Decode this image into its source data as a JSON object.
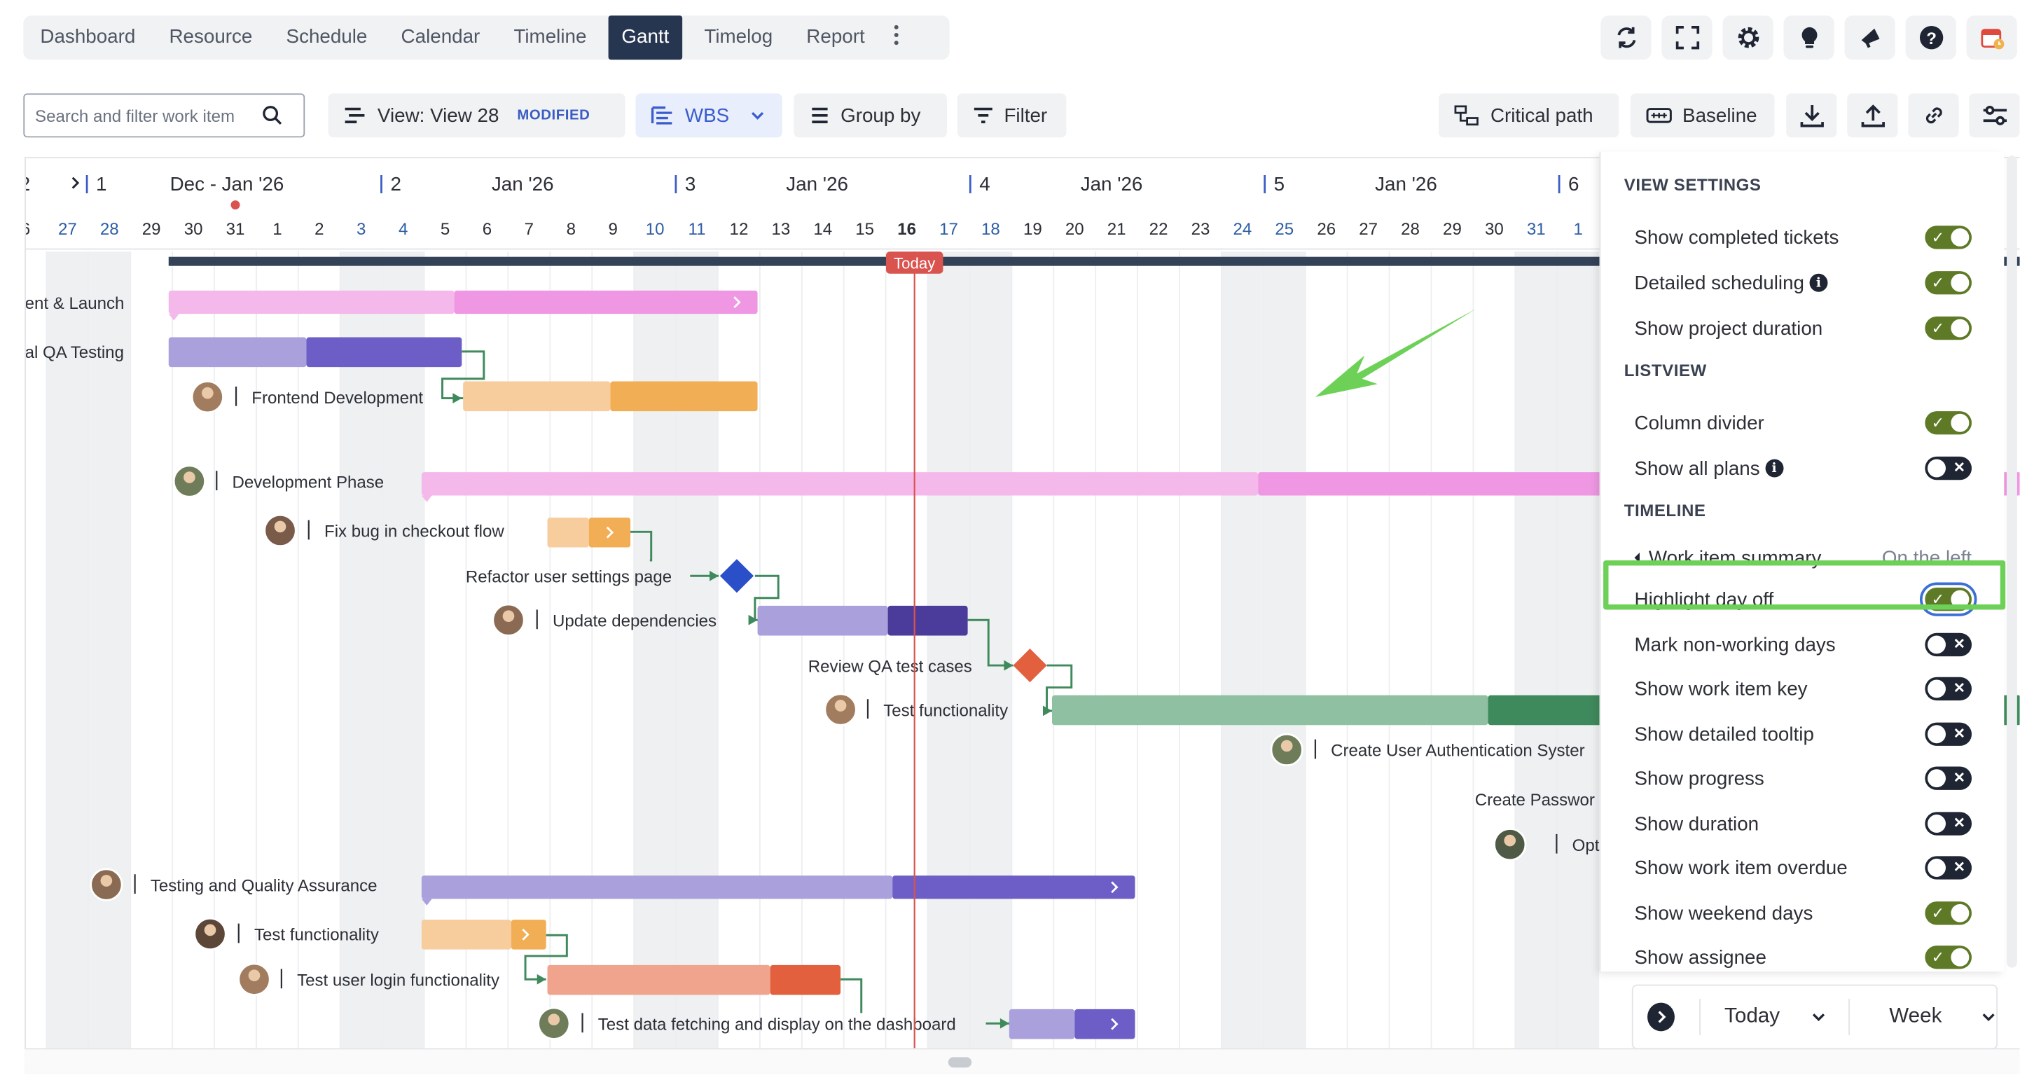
{
  "nav": {
    "tabs": [
      {
        "label": "Dashboard"
      },
      {
        "label": "Resource"
      },
      {
        "label": "Schedule"
      },
      {
        "label": "Calendar"
      },
      {
        "label": "Timeline"
      },
      {
        "label": "Gantt",
        "active": true
      },
      {
        "label": "Timelog"
      },
      {
        "label": "Report"
      }
    ],
    "more_icon": "vertical-ellipsis-icon",
    "right_icons": [
      "refresh-icon",
      "fullscreen-icon",
      "gear-icon",
      "lightbulb-icon",
      "megaphone-icon",
      "help-icon",
      "calendar-app-icon"
    ]
  },
  "toolbar": {
    "search_placeholder": "Search and filter work item",
    "view_label": "View: View 28",
    "view_badge": "MODIFIED",
    "wbs_label": "WBS",
    "group_label": "Group by",
    "filter_label": "Filter",
    "critical_label": "Critical path",
    "baseline_label": "Baseline",
    "right_icons": [
      "download-icon",
      "upload-icon",
      "link-icon",
      "sliders-icon"
    ]
  },
  "timeline": {
    "weeks": [
      {
        "num": "2",
        "label": ""
      },
      {
        "num": "1",
        "label": "Dec - Jan '26"
      },
      {
        "num": "2",
        "label": "Jan '26"
      },
      {
        "num": "3",
        "label": "Jan '26"
      },
      {
        "num": "4",
        "label": "Jan '26"
      },
      {
        "num": "5",
        "label": "Jan '26"
      },
      {
        "num": "6",
        "label": ""
      }
    ],
    "days": [
      "6",
      "27",
      "28",
      "29",
      "30",
      "31",
      "1",
      "2",
      "3",
      "4",
      "5",
      "6",
      "7",
      "8",
      "9",
      "10",
      "11",
      "12",
      "13",
      "14",
      "15",
      "16",
      "17",
      "18",
      "19",
      "20",
      "21",
      "22",
      "23",
      "24",
      "25",
      "26",
      "27",
      "28",
      "29",
      "30",
      "31",
      "1"
    ],
    "weekend_day_indices": [
      1,
      2,
      8,
      9,
      15,
      16,
      22,
      23,
      29,
      30,
      36,
      37
    ],
    "today_index": 21,
    "today_label": "Today",
    "colors": {
      "weekend_text": "#2e5ea6",
      "today_line": "#d9534f",
      "summary_bar": "#344258",
      "weekend_shade": "#eef0f2"
    }
  },
  "tasks": [
    {
      "label": "nent & Launch",
      "avatar": false
    },
    {
      "label": "nal QA Testing",
      "avatar": false
    },
    {
      "label": "Frontend Development",
      "avatar": true
    },
    {
      "label": "Development Phase",
      "avatar": true
    },
    {
      "label": "Fix bug in checkout flow",
      "avatar": true
    },
    {
      "label": "Refactor user settings page",
      "avatar": false
    },
    {
      "label": "Update dependencies",
      "avatar": true
    },
    {
      "label": "Review QA test cases",
      "avatar": false
    },
    {
      "label": "Test functionality",
      "avatar": true
    },
    {
      "label": "Create User Authentication Syster",
      "avatar": true
    },
    {
      "label": "Create Passwor",
      "avatar": false
    },
    {
      "label": "Optim",
      "avatar": true
    },
    {
      "label": "Testing and Quality Assurance",
      "avatar": true
    },
    {
      "label": "Test functionality",
      "avatar": true
    },
    {
      "label": "Test user login functionality",
      "avatar": true
    },
    {
      "label": "Test data fetching and display on the dashboard",
      "avatar": true
    }
  ],
  "settings": {
    "sections": [
      {
        "title": "VIEW SETTINGS",
        "items": [
          {
            "label": "Show completed tickets",
            "on": true
          },
          {
            "label": "Detailed scheduling",
            "on": true,
            "info": true
          },
          {
            "label": "Show project duration",
            "on": true
          }
        ]
      },
      {
        "title": "LISTVIEW",
        "items": [
          {
            "label": "Column divider",
            "on": true
          },
          {
            "label": "Show all plans",
            "on": false,
            "info": true
          }
        ]
      },
      {
        "title": "TIMELINE",
        "items": [
          {
            "label": "Work item summary",
            "value": "On the left",
            "submenu": true
          },
          {
            "label": "Highlight day off",
            "on": true,
            "highlight": true
          },
          {
            "label": "Mark non-working days",
            "on": false
          },
          {
            "label": "Show work item key",
            "on": false
          },
          {
            "label": "Show detailed tooltip",
            "on": false
          },
          {
            "label": "Show progress",
            "on": false
          },
          {
            "label": "Show duration",
            "on": false
          },
          {
            "label": "Show work item overdue",
            "on": false
          },
          {
            "label": "Show weekend days",
            "on": true
          },
          {
            "label": "Show assignee",
            "on": true
          }
        ]
      }
    ],
    "info_glyph": "i",
    "toggle_on_glyph": "✓",
    "toggle_off_glyph": "✕"
  },
  "bottom": {
    "today_label": "Today",
    "scale_label": "Week",
    "play_icon": "chevron-right-circle-icon"
  },
  "annotation": {
    "arrow_color": "#6dd157",
    "highlight_color": "#6dd157"
  }
}
